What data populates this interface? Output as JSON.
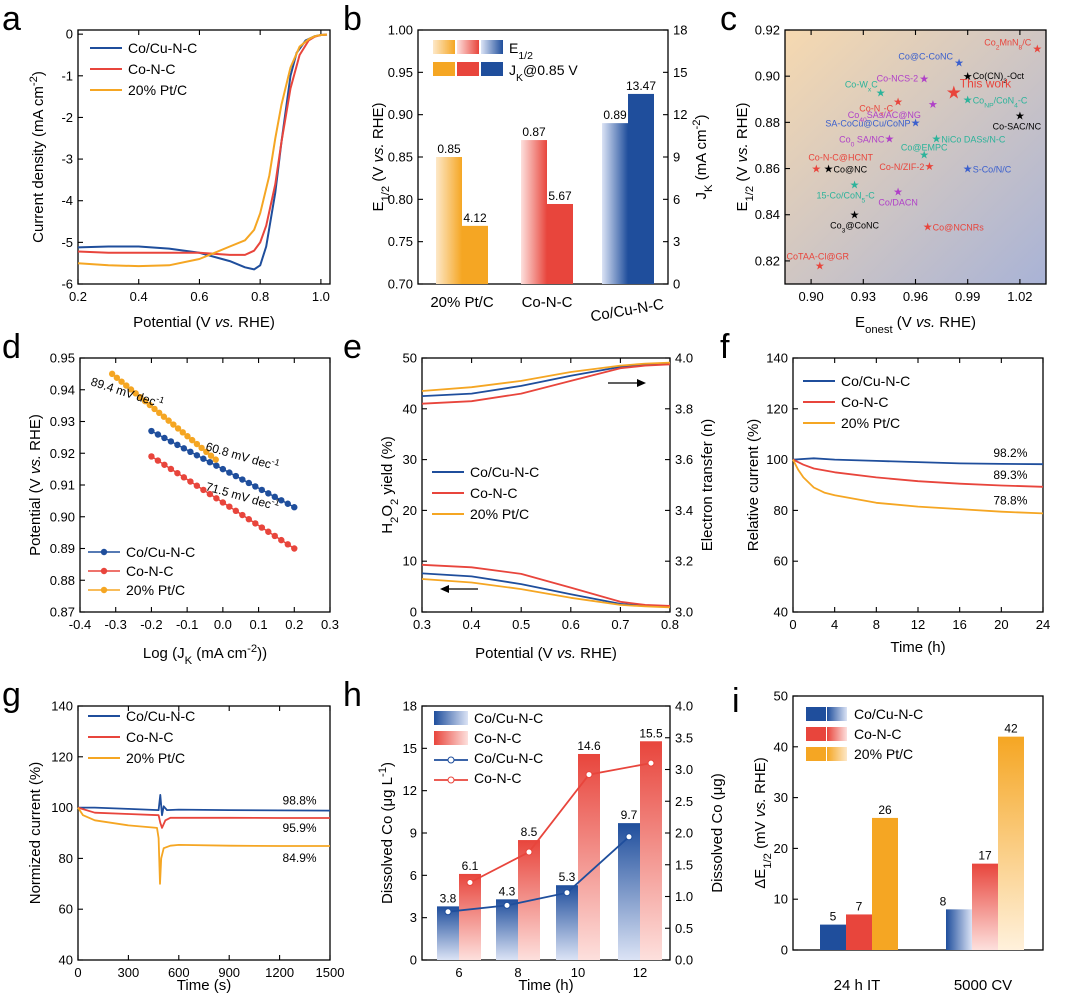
{
  "chart_data": [
    {
      "panel": "a",
      "type": "line",
      "xlabel": "Potential (V vs. RHE)",
      "ylabel": "Current density (mA cm-2)",
      "xlim": [
        0.2,
        1.03
      ],
      "ylim": [
        -6,
        0.1
      ],
      "xticks": [
        "0.2",
        "0.4",
        "0.6",
        "0.8",
        "1.0"
      ],
      "yticks": [
        "-6",
        "-5",
        "-4",
        "-3",
        "-2",
        "-1",
        "0"
      ],
      "series": [
        {
          "name": "Co/Cu-N-C",
          "color": "#1f4e9c",
          "x": [
            0.2,
            0.3,
            0.4,
            0.5,
            0.6,
            0.7,
            0.75,
            0.78,
            0.8,
            0.82,
            0.85,
            0.87,
            0.9,
            0.92,
            0.95,
            0.98,
            1.0,
            1.02
          ],
          "y": [
            -5.12,
            -5.1,
            -5.1,
            -5.15,
            -5.25,
            -5.45,
            -5.6,
            -5.65,
            -5.55,
            -5.1,
            -3.8,
            -2.6,
            -1.0,
            -0.45,
            -0.15,
            -0.05,
            -0.02,
            -0.01
          ]
        },
        {
          "name": "Co-N-C",
          "color": "#e8453c",
          "x": [
            0.2,
            0.3,
            0.4,
            0.5,
            0.6,
            0.7,
            0.75,
            0.78,
            0.8,
            0.82,
            0.85,
            0.87,
            0.9,
            0.93,
            0.96,
            0.98,
            1.0,
            1.02
          ],
          "y": [
            -5.22,
            -5.25,
            -5.25,
            -5.25,
            -5.25,
            -5.3,
            -5.3,
            -5.2,
            -5.0,
            -4.6,
            -3.6,
            -2.6,
            -1.3,
            -0.5,
            -0.15,
            -0.06,
            -0.02,
            -0.01
          ]
        },
        {
          "name": "20% Pt/C",
          "color": "#f5a623",
          "x": [
            0.2,
            0.3,
            0.4,
            0.5,
            0.6,
            0.65,
            0.7,
            0.75,
            0.78,
            0.8,
            0.83,
            0.85,
            0.87,
            0.9,
            0.93,
            0.96,
            0.98,
            1.0,
            1.02
          ],
          "y": [
            -5.5,
            -5.55,
            -5.57,
            -5.55,
            -5.4,
            -5.25,
            -5.1,
            -4.95,
            -4.7,
            -4.3,
            -3.4,
            -2.5,
            -1.7,
            -0.8,
            -0.3,
            -0.12,
            -0.05,
            -0.02,
            -0.01
          ]
        }
      ]
    },
    {
      "panel": "b",
      "type": "bar",
      "categories": [
        "20% Pt/C",
        "Co-N-C",
        "Co/Cu-N-C"
      ],
      "ylabel": "E1/2 (V vs. RHE)",
      "y2label": "JK (mA cm-2)",
      "ylim": [
        0.7,
        1.0
      ],
      "y2lim": [
        0,
        18
      ],
      "yticks": [
        "0.70",
        "0.75",
        "0.80",
        "0.85",
        "0.90",
        "0.95",
        "1.00"
      ],
      "y2ticks": [
        "0",
        "3",
        "6",
        "9",
        "12",
        "15",
        "18"
      ],
      "legend": [
        "E1/2",
        "JK@0.85 V"
      ],
      "e_half": [
        0.85,
        0.87,
        0.89
      ],
      "e_half_labels": [
        "0.85",
        "0.87",
        "0.89"
      ],
      "jk": [
        4.12,
        5.67,
        13.47
      ],
      "jk_labels": [
        "4.12",
        "5.67",
        "13.47"
      ],
      "colors": [
        "#f5a623",
        "#e8453c",
        "#1f4e9c"
      ]
    },
    {
      "panel": "c",
      "type": "scatter",
      "xlabel": "Eonest (V vs. RHE)",
      "ylabel": "E1/2 (V vs. RHE)",
      "xlim": [
        0.885,
        1.035
      ],
      "ylim": [
        0.81,
        0.92
      ],
      "xticks": [
        "0.90",
        "0.93",
        "0.96",
        "0.99",
        "1.02"
      ],
      "yticks": [
        "0.82",
        "0.84",
        "0.86",
        "0.88",
        "0.90",
        "0.92"
      ],
      "points": [
        {
          "label": "Co2MnN8/C",
          "x": 1.03,
          "y": 0.912,
          "color": "#e8453c"
        },
        {
          "label": "Co@C-CoNC",
          "x": 0.985,
          "y": 0.906,
          "color": "#3a5fcd"
        },
        {
          "label": "Co(CN)3-Oct",
          "x": 0.99,
          "y": 0.9,
          "color": "#000000"
        },
        {
          "label": "Co-NCS-2",
          "x": 0.965,
          "y": 0.899,
          "color": "#b040c8"
        },
        {
          "label": "Co-WxC",
          "x": 0.94,
          "y": 0.893,
          "color": "#2bb39a"
        },
        {
          "label": "This work",
          "x": 0.982,
          "y": 0.893,
          "color": "#e8453c"
        },
        {
          "label": "CoNP/CoN4-C",
          "x": 0.99,
          "y": 0.89,
          "color": "#2bb39a"
        },
        {
          "label": "Co-NxC",
          "x": 0.95,
          "y": 0.889,
          "color": "#e8453c"
        },
        {
          "label": "Co40SAs/AC@NG",
          "x": 0.97,
          "y": 0.888,
          "color": "#b040c8"
        },
        {
          "label": "SA-CoCu@Cu/CoNP",
          "x": 0.96,
          "y": 0.88,
          "color": "#3a5fcd"
        },
        {
          "label": "Co-SAC/NC",
          "x": 1.02,
          "y": 0.883,
          "color": "#000000"
        },
        {
          "label": "Co0 SA/NC",
          "x": 0.945,
          "y": 0.873,
          "color": "#b040c8"
        },
        {
          "label": "NiCo DASs/N-C",
          "x": 0.972,
          "y": 0.873,
          "color": "#2bb39a"
        },
        {
          "label": "Co@EMPC",
          "x": 0.965,
          "y": 0.866,
          "color": "#2bb39a"
        },
        {
          "label": "Co-N-C@HCNT",
          "x": 0.903,
          "y": 0.86,
          "color": "#e8453c"
        },
        {
          "label": "Co@NC",
          "x": 0.91,
          "y": 0.86,
          "color": "#000000"
        },
        {
          "label": "Co-N/ZIF-2",
          "x": 0.968,
          "y": 0.861,
          "color": "#e8453c"
        },
        {
          "label": "S-Co/N/C",
          "x": 0.99,
          "y": 0.86,
          "color": "#3a5fcd"
        },
        {
          "label": "15-Co/CoN5-C",
          "x": 0.925,
          "y": 0.853,
          "color": "#2bb39a"
        },
        {
          "label": "Co/DACN",
          "x": 0.95,
          "y": 0.85,
          "color": "#b040c8"
        },
        {
          "label": "Co3@CoNC",
          "x": 0.925,
          "y": 0.84,
          "color": "#000000"
        },
        {
          "label": "Co@NCNRs",
          "x": 0.967,
          "y": 0.835,
          "color": "#e8453c"
        },
        {
          "label": "CoTAA-Cl@GR",
          "x": 0.905,
          "y": 0.818,
          "color": "#e8453c"
        }
      ]
    },
    {
      "panel": "d",
      "type": "line",
      "xlabel": "Log (JK (mA cm-2))",
      "ylabel": "Potential (V vs. RHE)",
      "xlim": [
        -0.4,
        0.3
      ],
      "ylim": [
        0.87,
        0.95
      ],
      "xticks": [
        "-0.4",
        "-0.3",
        "-0.2",
        "-0.1",
        "0.0",
        "0.1",
        "0.2",
        "0.3"
      ],
      "yticks": [
        "0.87",
        "0.88",
        "0.89",
        "0.90",
        "0.91",
        "0.92",
        "0.93",
        "0.94",
        "0.95"
      ],
      "annotations": [
        "89.4 mV dec-1",
        "60.8 mV dec-1",
        "71.5 mV dec-1"
      ],
      "series": [
        {
          "name": "Co/Cu-N-C",
          "color": "#1f4e9c",
          "x": [
            -0.2,
            0.2
          ],
          "y": [
            0.927,
            0.903
          ]
        },
        {
          "name": "Co-N-C",
          "color": "#e8453c",
          "x": [
            -0.2,
            0.2
          ],
          "y": [
            0.919,
            0.89
          ]
        },
        {
          "name": "20% Pt/C",
          "color": "#f5a623",
          "x": [
            -0.31,
            -0.02
          ],
          "y": [
            0.945,
            0.918
          ]
        }
      ]
    },
    {
      "panel": "e",
      "type": "line",
      "xlabel": "Potential (V vs. RHE)",
      "ylabel": "H2O2 yield (%)",
      "y2label": "Electron transfer (n)",
      "xlim": [
        0.3,
        0.8
      ],
      "ylim": [
        0,
        50
      ],
      "y2lim": [
        3.0,
        4.0
      ],
      "xticks": [
        "0.3",
        "0.4",
        "0.5",
        "0.6",
        "0.7",
        "0.8"
      ],
      "yticks": [
        "0",
        "10",
        "20",
        "30",
        "40",
        "50"
      ],
      "y2ticks": [
        "3.0",
        "3.2",
        "3.4",
        "3.6",
        "3.8",
        "4.0"
      ],
      "series": [
        {
          "name": "Co/Cu-N-C",
          "color": "#1f4e9c",
          "x": [
            0.3,
            0.4,
            0.5,
            0.6,
            0.7,
            0.75,
            0.8
          ],
          "h2o2": [
            7.6,
            7.0,
            5.5,
            3.5,
            1.6,
            1.2,
            1.0
          ],
          "n": [
            3.85,
            3.86,
            3.89,
            3.93,
            3.965,
            3.973,
            3.976
          ]
        },
        {
          "name": "Co-N-C",
          "color": "#e8453c",
          "x": [
            0.3,
            0.4,
            0.5,
            0.6,
            0.7,
            0.75,
            0.8
          ],
          "h2o2": [
            9.3,
            8.8,
            7.5,
            4.8,
            2.0,
            1.4,
            1.2
          ],
          "n": [
            3.82,
            3.83,
            3.86,
            3.91,
            3.96,
            3.97,
            3.975
          ]
        },
        {
          "name": "20% Pt/C",
          "color": "#f5a623",
          "x": [
            0.3,
            0.4,
            0.5,
            0.6,
            0.7,
            0.75,
            0.8
          ],
          "h2o2": [
            6.5,
            5.8,
            4.5,
            2.8,
            1.4,
            1.1,
            0.9
          ],
          "n": [
            3.87,
            3.885,
            3.91,
            3.945,
            3.97,
            3.978,
            3.982
          ]
        }
      ]
    },
    {
      "panel": "f",
      "type": "line",
      "xlabel": "Time (h)",
      "ylabel": "Relative current (%)",
      "xlim": [
        0,
        24
      ],
      "ylim": [
        40,
        140
      ],
      "xticks": [
        "0",
        "4",
        "8",
        "12",
        "16",
        "20",
        "24"
      ],
      "yticks": [
        "40",
        "60",
        "80",
        "100",
        "120",
        "140"
      ],
      "end_labels": [
        "98.2%",
        "89.3%",
        "78.8%"
      ],
      "series": [
        {
          "name": "Co/Cu-N-C",
          "color": "#1f4e9c",
          "x": [
            0,
            2,
            4,
            8,
            12,
            16,
            20,
            24
          ],
          "y": [
            100,
            100.5,
            100,
            99.5,
            99,
            98.5,
            98.3,
            98.2
          ]
        },
        {
          "name": "Co-N-C",
          "color": "#e8453c",
          "x": [
            0,
            1,
            2,
            4,
            8,
            12,
            16,
            20,
            24
          ],
          "y": [
            100,
            98,
            96.5,
            95,
            93,
            91.5,
            90.5,
            89.8,
            89.3
          ]
        },
        {
          "name": "20% Pt/C",
          "color": "#f5a623",
          "x": [
            0,
            0.5,
            1,
            2,
            3,
            4,
            6,
            8,
            12,
            16,
            20,
            24
          ],
          "y": [
            100,
            96,
            93,
            89,
            87,
            86,
            84.5,
            83,
            81.5,
            80.5,
            79.5,
            78.8
          ]
        }
      ]
    },
    {
      "panel": "g",
      "type": "line",
      "xlabel": "Time (s)",
      "ylabel": "Normized current (%)",
      "xlim": [
        0,
        1500
      ],
      "ylim": [
        40,
        140
      ],
      "xticks": [
        "0",
        "300",
        "600",
        "900",
        "1200",
        "1500"
      ],
      "yticks": [
        "40",
        "60",
        "80",
        "100",
        "120",
        "140"
      ],
      "end_labels": [
        "98.8%",
        "95.9%",
        "84.9%"
      ],
      "series": [
        {
          "name": "Co/Cu-N-C",
          "color": "#1f4e9c",
          "x": [
            0,
            100,
            300,
            480,
            490,
            500,
            510,
            530,
            600,
            900,
            1200,
            1500
          ],
          "y": [
            100,
            100,
            99.5,
            99,
            105,
            97,
            100.5,
            99,
            99.2,
            99,
            98.9,
            98.8
          ]
        },
        {
          "name": "Co-N-C",
          "color": "#e8453c",
          "x": [
            0,
            100,
            300,
            480,
            490,
            500,
            520,
            550,
            600,
            900,
            1200,
            1500
          ],
          "y": [
            100,
            98,
            97.5,
            97,
            94,
            92,
            95,
            96,
            96,
            96,
            95.9,
            95.9
          ]
        },
        {
          "name": "20% Pt/C",
          "color": "#f5a623",
          "x": [
            0,
            30,
            100,
            300,
            470,
            480,
            488,
            495,
            510,
            550,
            600,
            900,
            1200,
            1500
          ],
          "y": [
            100,
            97,
            95,
            93,
            92,
            88,
            70,
            80,
            84,
            85,
            85.3,
            85,
            84.9,
            84.9
          ]
        }
      ]
    },
    {
      "panel": "h",
      "type": "bar",
      "categories": [
        "6",
        "8",
        "10",
        "12"
      ],
      "xlabel": "Time (h)",
      "ylabel": "Dissolved Co (μg L-1)",
      "y2label": "Dissolved Co (μg)",
      "ylim": [
        0,
        18
      ],
      "y2lim": [
        0,
        4.0
      ],
      "yticks": [
        "0",
        "3",
        "6",
        "9",
        "12",
        "15",
        "18"
      ],
      "y2ticks": [
        "0.0",
        "0.5",
        "1.0",
        "1.5",
        "2.0",
        "2.5",
        "3.0",
        "3.5",
        "4.0"
      ],
      "legend": [
        "Co/Cu-N-C",
        "Co-N-C",
        "Co/Cu-N-C",
        "Co-N-C"
      ],
      "series": [
        {
          "name": "Co/Cu-N-C",
          "color": "#1f4e9c",
          "values": [
            3.8,
            4.3,
            5.3,
            9.7
          ],
          "labels": [
            "3.8",
            "4.3",
            "5.3",
            "9.7"
          ],
          "line": [
            0.76,
            0.86,
            1.06,
            1.94
          ]
        },
        {
          "name": "Co-N-C",
          "color": "#e8453c",
          "values": [
            6.1,
            8.5,
            14.6,
            15.5
          ],
          "labels": [
            "6.1",
            "8.5",
            "14.6",
            "15.5"
          ],
          "line": [
            1.22,
            1.7,
            2.92,
            3.1
          ]
        }
      ]
    },
    {
      "panel": "i",
      "type": "bar",
      "categories": [
        "24 h IT",
        "5000 CV"
      ],
      "ylabel": "ΔE1/2 (mV vs. RHE)",
      "ylim": [
        0,
        50
      ],
      "yticks": [
        "0",
        "10",
        "20",
        "30",
        "40",
        "50"
      ],
      "series": [
        {
          "name": "Co/Cu-N-C",
          "color": "#1f4e9c",
          "values": [
            5,
            8
          ],
          "labels": [
            "5",
            "8"
          ]
        },
        {
          "name": "Co-N-C",
          "color": "#e8453c",
          "values": [
            7,
            17
          ],
          "labels": [
            "7",
            "17"
          ]
        },
        {
          "name": "20% Pt/C",
          "color": "#f5a623",
          "values": [
            26,
            42
          ],
          "labels": [
            "26",
            "42"
          ]
        }
      ]
    }
  ]
}
